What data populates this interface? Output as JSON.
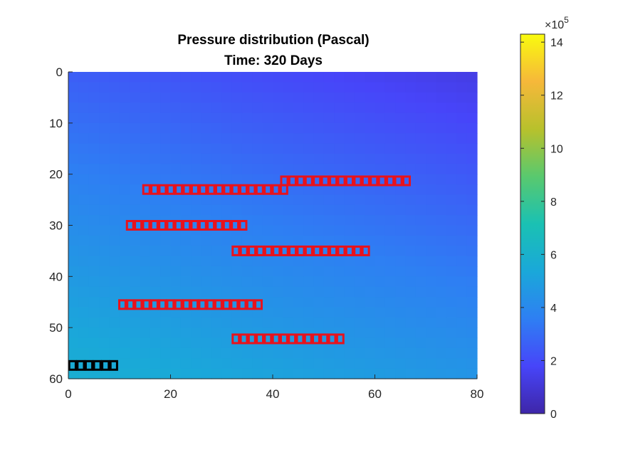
{
  "chart_data": {
    "type": "heatmap",
    "title": "Pressure distribution (Pascal)",
    "subtitle": "Time: 320 Days",
    "xlabel": "",
    "ylabel": "",
    "xlim": [
      0,
      80
    ],
    "ylim": [
      60,
      0
    ],
    "y_reversed": true,
    "x_ticks": [
      0,
      20,
      40,
      60,
      80
    ],
    "y_ticks": [
      0,
      10,
      20,
      30,
      40,
      50,
      60
    ],
    "colormap": "parula",
    "colorbar": {
      "min": 0,
      "max": 14.3,
      "ticks": [
        0,
        2,
        4,
        6,
        8,
        10,
        12,
        14
      ],
      "exponent_label": "×10",
      "exponent": "5"
    },
    "field_description": "Pressure rises from about 1.3 at top-right to about 5.8 at bottom-left (×10^5 Pa)",
    "field_range": [
      1.3,
      5.8
    ],
    "wells": [
      {
        "color": "red",
        "row": 23,
        "x_start": 14.5,
        "x_end": 43,
        "cells": 18
      },
      {
        "color": "red",
        "row": 21.3,
        "x_start": 41.5,
        "x_end": 67,
        "cells": 16
      },
      {
        "color": "red",
        "row": 30,
        "x_start": 11.3,
        "x_end": 35,
        "cells": 15
      },
      {
        "color": "red",
        "row": 35,
        "x_start": 32,
        "x_end": 59,
        "cells": 17
      },
      {
        "color": "red",
        "row": 45.5,
        "x_start": 9.8,
        "x_end": 38,
        "cells": 18
      },
      {
        "color": "red",
        "row": 52.2,
        "x_start": 32,
        "x_end": 54,
        "cells": 14
      },
      {
        "color": "black",
        "row": 57.4,
        "x_start": 0,
        "x_end": 9.7,
        "cells": 6
      }
    ],
    "colors": {
      "well_injector": "#e8121c",
      "well_producer": "#000000"
    }
  }
}
